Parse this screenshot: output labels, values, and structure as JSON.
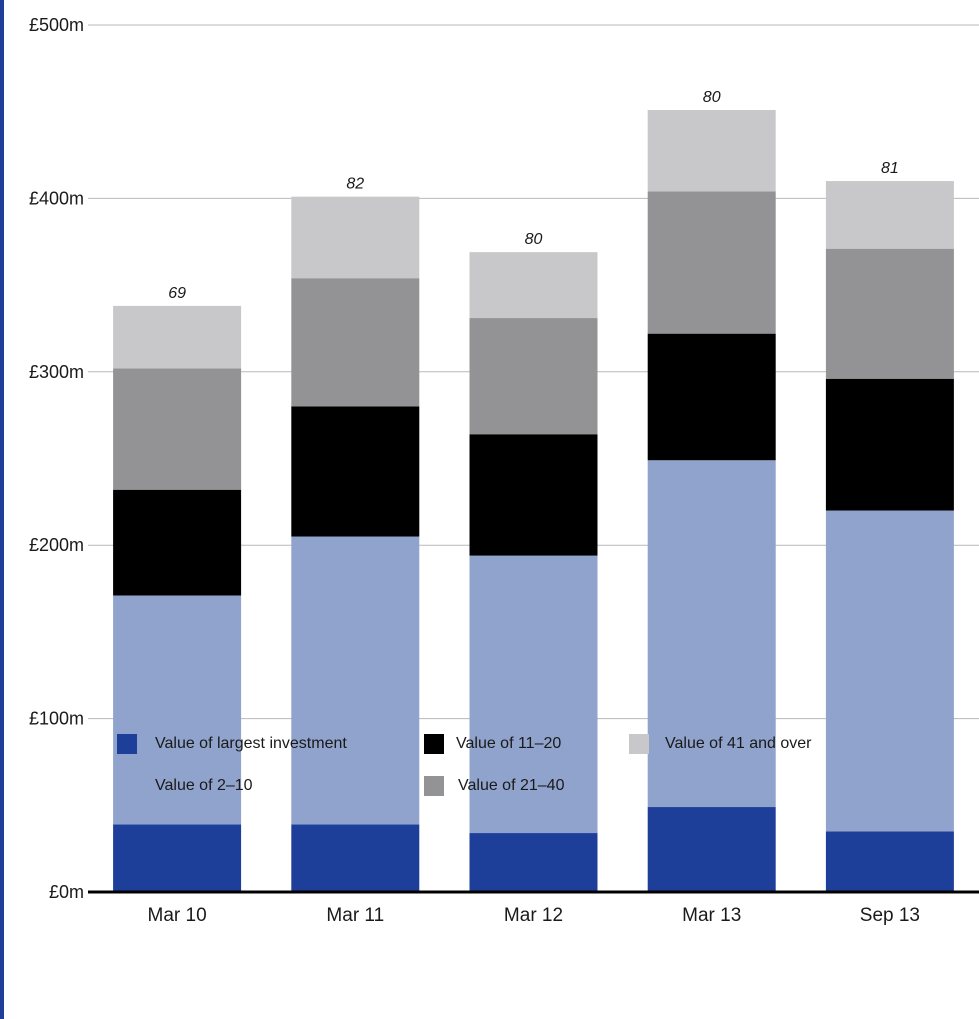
{
  "chart_data": {
    "type": "bar",
    "stacked": true,
    "categories": [
      "Mar 10",
      "Mar 11",
      "Mar 12",
      "Mar 13",
      "Sep 13"
    ],
    "series": [
      {
        "name": "Value of largest investment",
        "color": "#1e3f99",
        "values": [
          39,
          39,
          34,
          49,
          35
        ]
      },
      {
        "name": "Value of 2–10",
        "color": "#8fa3cc",
        "values": [
          132,
          166,
          160,
          200,
          185
        ]
      },
      {
        "name": "Value of 11–20",
        "color": "#000000",
        "values": [
          61,
          75,
          70,
          73,
          76
        ]
      },
      {
        "name": "Value of 21–40",
        "color": "#939395",
        "values": [
          70,
          74,
          67,
          82,
          75
        ]
      },
      {
        "name": "Value of 41 and over",
        "color": "#c8c8ca",
        "values": [
          36,
          47,
          38,
          47,
          39
        ]
      }
    ],
    "data_labels": [
      "69",
      "82",
      "80",
      "80",
      "81"
    ],
    "y_ticks": [
      "£0m",
      "£100m",
      "£200m",
      "£300m",
      "£400m",
      "£500m"
    ],
    "ylim": [
      0,
      500
    ],
    "grid": true,
    "legend_position": "bottom"
  }
}
